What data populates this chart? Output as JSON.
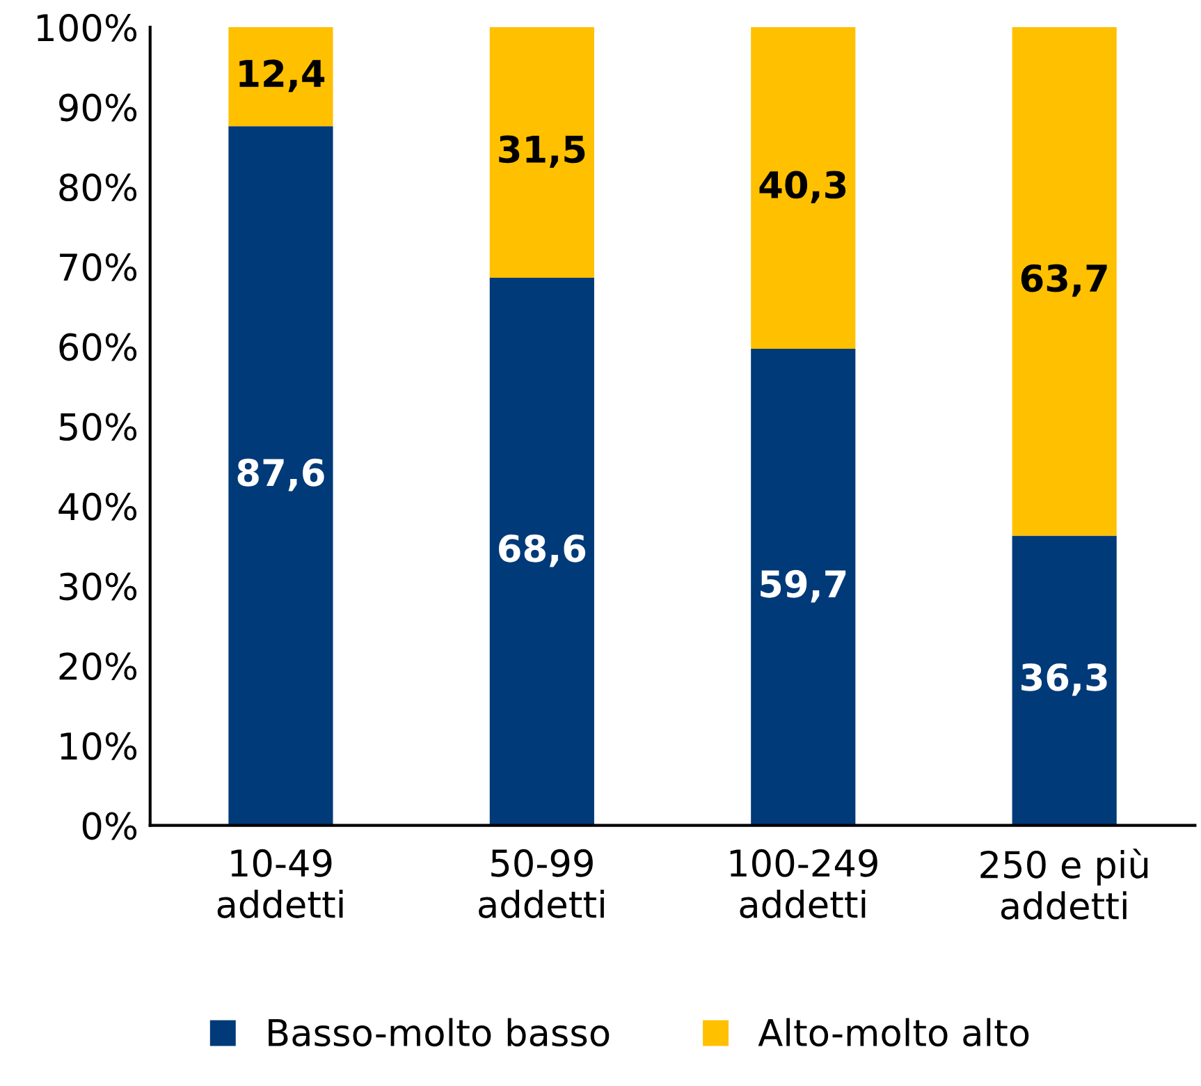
{
  "chart_data": {
    "type": "bar",
    "stacked": true,
    "categories": [
      "10-49\naddetti",
      "50-99\naddetti",
      "100-249\naddetti",
      "250 e più\naddetti"
    ],
    "series": [
      {
        "name": "Basso-molto basso",
        "color": "#003a78",
        "values": [
          87.6,
          68.6,
          59.7,
          36.3
        ],
        "value_labels": [
          "87,6",
          "68,6",
          "59,7",
          "36,3"
        ]
      },
      {
        "name": "Alto-molto alto",
        "color": "#ffc000",
        "values": [
          12.4,
          31.5,
          40.3,
          63.7
        ],
        "value_labels": [
          "12,4",
          "31,5",
          "40,3",
          "63,7"
        ]
      }
    ],
    "ylim": [
      0,
      100
    ],
    "yticks": [
      {
        "value": 0,
        "label": "0%"
      },
      {
        "value": 10,
        "label": "10%"
      },
      {
        "value": 20,
        "label": "20%"
      },
      {
        "value": 30,
        "label": "30%"
      },
      {
        "value": 40,
        "label": "40%"
      },
      {
        "value": 50,
        "label": "50%"
      },
      {
        "value": 60,
        "label": "60%"
      },
      {
        "value": 70,
        "label": "70%"
      },
      {
        "value": 80,
        "label": "80%"
      },
      {
        "value": 90,
        "label": "90%"
      },
      {
        "value": 100,
        "label": "100%"
      }
    ],
    "grid": false,
    "legend": "bottom"
  }
}
